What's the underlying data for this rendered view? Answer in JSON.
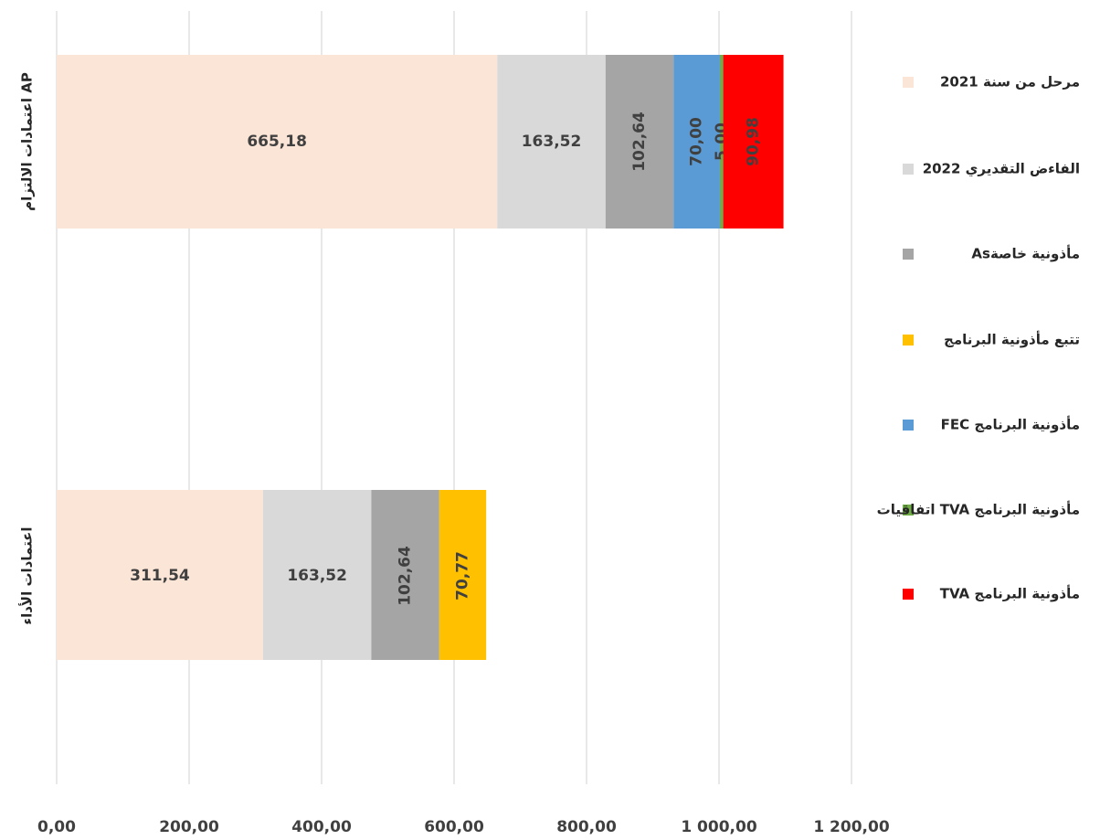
{
  "chart_data": {
    "type": "stacked-barh",
    "categories": [
      "اعتمادات الالتزام AP",
      "اعتمادات الأداء"
    ],
    "series": [
      {
        "name": "مرحل من سنة 2021",
        "color": "#fbe5d6",
        "values": [
          665.18,
          311.54
        ],
        "value_labels": [
          "665,18",
          "311,54"
        ]
      },
      {
        "name": "الفاءض التقديري 2022",
        "color": "#d9d9d9",
        "values": [
          163.52,
          163.52
        ],
        "value_labels": [
          "163,52",
          "163,52"
        ]
      },
      {
        "name": "مأذونية خاصةAs",
        "color": "#a5a5a5",
        "values": [
          102.64,
          102.64
        ],
        "value_labels": [
          "102,64",
          "102,64"
        ]
      },
      {
        "name": "تتبع مأذونية  البرنامج",
        "color": "#ffc000",
        "values": [
          null,
          70.77
        ],
        "value_labels": [
          null,
          "70,77"
        ]
      },
      {
        "name": "مأذونية  البرنامج FEC",
        "color": "#5b9bd5",
        "values": [
          70.0,
          null
        ],
        "value_labels": [
          "70,00",
          null
        ]
      },
      {
        "name": "مأذونية  البرنامج TVA اتفاقيات",
        "color": "#70ad47",
        "values": [
          5.0,
          null
        ],
        "value_labels": [
          "5,00",
          null
        ]
      },
      {
        "name": "مأذونية  البرنامج TVA",
        "color": "#ff0000",
        "values": [
          90.98,
          null
        ],
        "value_labels": [
          "90,98",
          null
        ]
      }
    ],
    "xlim": [
      0,
      1200
    ],
    "xticks": [
      {
        "value": 0,
        "label": "0,00"
      },
      {
        "value": 200,
        "label": "200,00"
      },
      {
        "value": 400,
        "label": "400,00"
      },
      {
        "value": 600,
        "label": "600,00"
      },
      {
        "value": 800,
        "label": "800,00"
      },
      {
        "value": 1000,
        "label": "1 000,00"
      },
      {
        "value": 1200,
        "label": "1 200,00"
      }
    ],
    "grid": true,
    "legend": "right"
  }
}
